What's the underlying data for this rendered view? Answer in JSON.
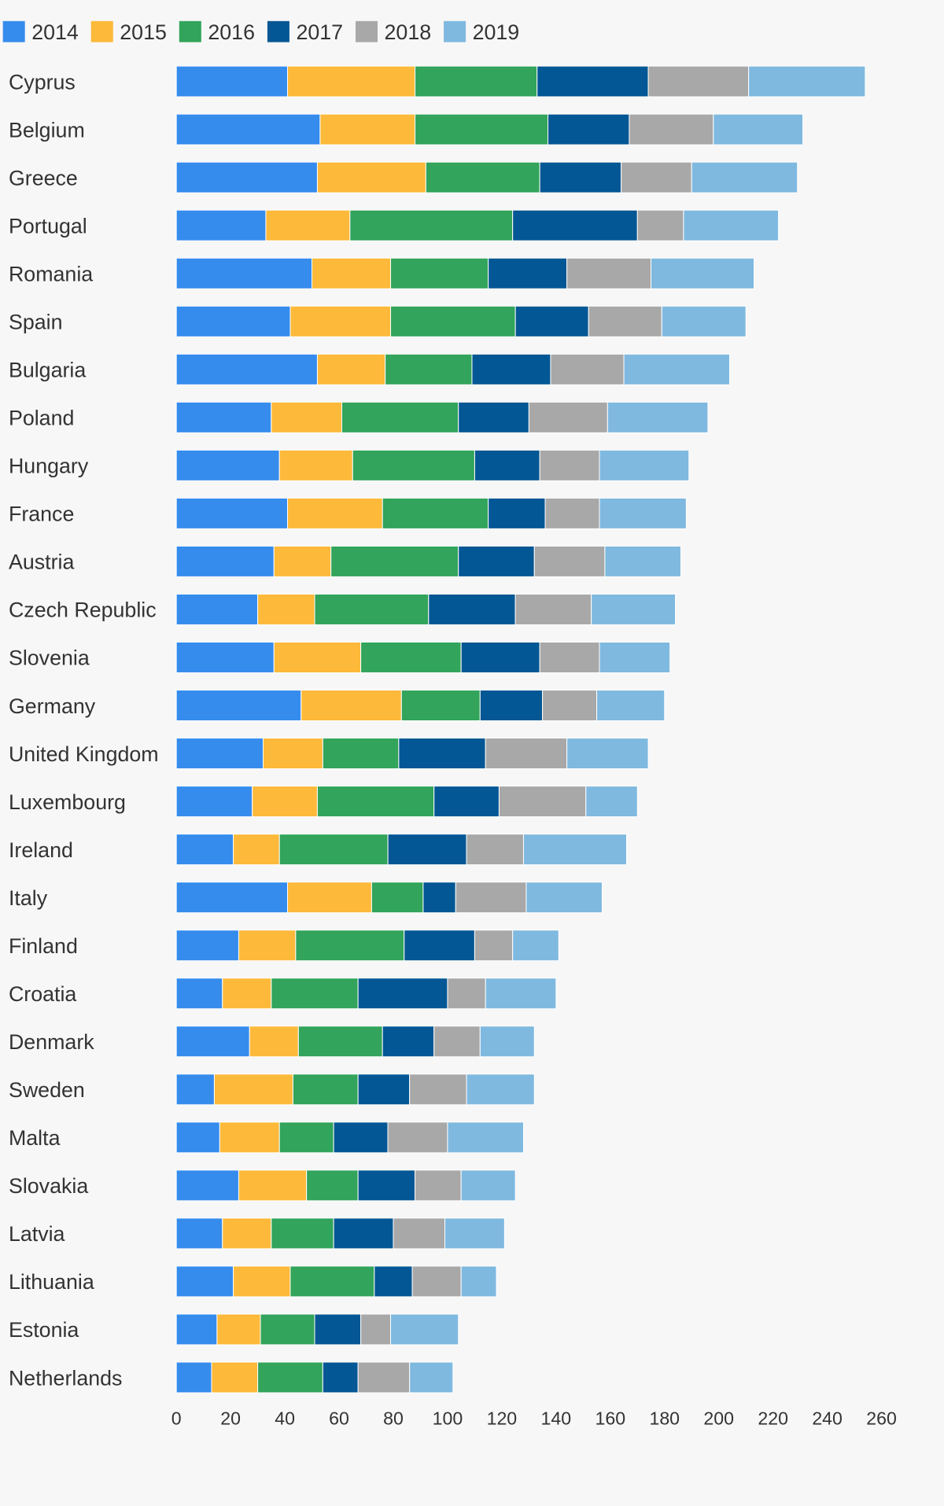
{
  "chart_data": {
    "type": "bar",
    "orientation": "horizontal",
    "stacked": true,
    "title": "",
    "xlabel": "",
    "ylabel": "",
    "xlim": [
      0,
      260
    ],
    "x_ticks": [
      0,
      20,
      40,
      60,
      80,
      100,
      120,
      140,
      160,
      180,
      200,
      220,
      240,
      260
    ],
    "grid": false,
    "legend_position": "top-left",
    "categories": [
      "Cyprus",
      "Belgium",
      "Greece",
      "Portugal",
      "Romania",
      "Spain",
      "Bulgaria",
      "Poland",
      "Hungary",
      "France",
      "Austria",
      "Czech Republic",
      "Slovenia",
      "Germany",
      "United Kingdom",
      "Luxembourg",
      "Ireland",
      "Italy",
      "Finland",
      "Croatia",
      "Denmark",
      "Sweden",
      "Malta",
      "Slovakia",
      "Latvia",
      "Lithuania",
      "Estonia",
      "Netherlands"
    ],
    "series": [
      {
        "name": "2014",
        "color": "#368ced",
        "values": [
          41,
          53,
          52,
          33,
          50,
          42,
          52,
          35,
          38,
          41,
          36,
          30,
          36,
          46,
          32,
          28,
          21,
          41,
          23,
          17,
          27,
          14,
          16,
          23,
          17,
          21,
          15,
          13
        ]
      },
      {
        "name": "2015",
        "color": "#fdb93a",
        "values": [
          47,
          35,
          40,
          31,
          29,
          37,
          25,
          26,
          27,
          35,
          21,
          21,
          32,
          37,
          22,
          24,
          17,
          31,
          21,
          18,
          18,
          29,
          22,
          25,
          18,
          21,
          16,
          17
        ]
      },
      {
        "name": "2016",
        "color": "#32a45b",
        "values": [
          45,
          49,
          42,
          60,
          36,
          46,
          32,
          43,
          45,
          39,
          47,
          42,
          37,
          29,
          28,
          43,
          40,
          19,
          40,
          32,
          31,
          24,
          20,
          19,
          23,
          31,
          20,
          24
        ]
      },
      {
        "name": "2017",
        "color": "#035794",
        "values": [
          41,
          30,
          30,
          46,
          29,
          27,
          29,
          26,
          24,
          21,
          28,
          32,
          29,
          23,
          32,
          24,
          29,
          12,
          26,
          33,
          19,
          19,
          20,
          21,
          22,
          14,
          17,
          13
        ]
      },
      {
        "name": "2018",
        "color": "#a8a8a8",
        "values": [
          37,
          31,
          26,
          17,
          31,
          27,
          27,
          29,
          22,
          20,
          26,
          28,
          22,
          20,
          30,
          32,
          21,
          26,
          14,
          14,
          17,
          21,
          22,
          17,
          19,
          18,
          11,
          19
        ]
      },
      {
        "name": "2019",
        "color": "#7fb9e0",
        "values": [
          43,
          33,
          39,
          35,
          38,
          31,
          39,
          37,
          33,
          32,
          28,
          31,
          26,
          25,
          30,
          19,
          38,
          28,
          17,
          26,
          20,
          25,
          28,
          20,
          22,
          13,
          25,
          16
        ]
      }
    ]
  }
}
